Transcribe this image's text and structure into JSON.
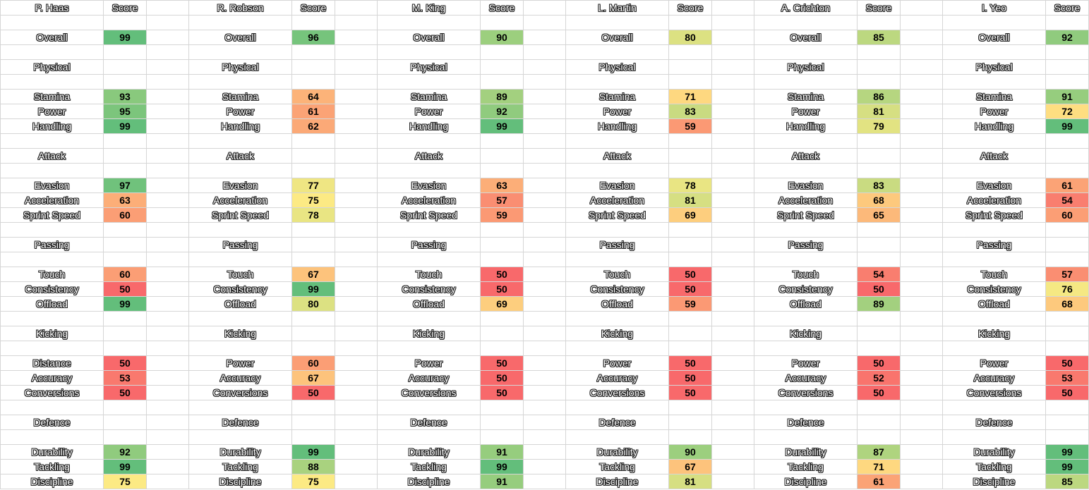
{
  "header_label": "Score",
  "overall_label": "Overall",
  "scale_colors": {
    "low": "#f8696b",
    "mid": "#ffeb84",
    "high": "#63be7b"
  },
  "players": [
    {
      "name": "P. Haas",
      "overall": 99,
      "sections": [
        {
          "title": "Physical",
          "stats": [
            {
              "label": "Stamina",
              "value": 93
            },
            {
              "label": "Power",
              "value": 95
            },
            {
              "label": "Handling",
              "value": 99
            }
          ]
        },
        {
          "title": "Attack",
          "stats": [
            {
              "label": "Evasion",
              "value": 97
            },
            {
              "label": "Acceleration",
              "value": 63
            },
            {
              "label": "Sprint Speed",
              "value": 60
            }
          ]
        },
        {
          "title": "Passing",
          "stats": [
            {
              "label": "Touch",
              "value": 60
            },
            {
              "label": "Consistency",
              "value": 50
            },
            {
              "label": "Offload",
              "value": 99
            }
          ]
        },
        {
          "title": "Kicking",
          "stats": [
            {
              "label": "Distance",
              "value": 50
            },
            {
              "label": "Accuracy",
              "value": 53
            },
            {
              "label": "Conversions",
              "value": 50
            }
          ]
        },
        {
          "title": "Defence",
          "stats": [
            {
              "label": "Durability",
              "value": 92
            },
            {
              "label": "Tackling",
              "value": 99
            },
            {
              "label": "Discipline",
              "value": 75
            }
          ]
        }
      ]
    },
    {
      "name": "R. Robson",
      "overall": 96,
      "sections": [
        {
          "title": "Physical",
          "stats": [
            {
              "label": "Stamina",
              "value": 64
            },
            {
              "label": "Power",
              "value": 61
            },
            {
              "label": "Handling",
              "value": 62
            }
          ]
        },
        {
          "title": "Attack",
          "stats": [
            {
              "label": "Evasion",
              "value": 77
            },
            {
              "label": "Acceleration",
              "value": 75
            },
            {
              "label": "Sprint Speed",
              "value": 78
            }
          ]
        },
        {
          "title": "Passing",
          "stats": [
            {
              "label": "Touch",
              "value": 67
            },
            {
              "label": "Consistency",
              "value": 99
            },
            {
              "label": "Offload",
              "value": 80
            }
          ]
        },
        {
          "title": "Kicking",
          "stats": [
            {
              "label": "Power",
              "value": 60
            },
            {
              "label": "Accuracy",
              "value": 67
            },
            {
              "label": "Conversions",
              "value": 50
            }
          ]
        },
        {
          "title": "Defence",
          "stats": [
            {
              "label": "Durability",
              "value": 99
            },
            {
              "label": "Tackling",
              "value": 88
            },
            {
              "label": "Discipline",
              "value": 75
            }
          ]
        }
      ]
    },
    {
      "name": "M. King",
      "overall": 90,
      "sections": [
        {
          "title": "Physical",
          "stats": [
            {
              "label": "Stamina",
              "value": 89
            },
            {
              "label": "Power",
              "value": 92
            },
            {
              "label": "Handling",
              "value": 99
            }
          ]
        },
        {
          "title": "Attack",
          "stats": [
            {
              "label": "Evasion",
              "value": 63
            },
            {
              "label": "Acceleration",
              "value": 57
            },
            {
              "label": "Sprint Speed",
              "value": 59
            }
          ]
        },
        {
          "title": "Passing",
          "stats": [
            {
              "label": "Touch",
              "value": 50
            },
            {
              "label": "Consistency",
              "value": 50
            },
            {
              "label": "Offload",
              "value": 69
            }
          ]
        },
        {
          "title": "Kicking",
          "stats": [
            {
              "label": "Power",
              "value": 50
            },
            {
              "label": "Accuracy",
              "value": 50
            },
            {
              "label": "Conversions",
              "value": 50
            }
          ]
        },
        {
          "title": "Defence",
          "stats": [
            {
              "label": "Durability",
              "value": 91
            },
            {
              "label": "Tackling",
              "value": 99
            },
            {
              "label": "Discipline",
              "value": 91
            }
          ]
        }
      ]
    },
    {
      "name": "L. Martin",
      "overall": 80,
      "sections": [
        {
          "title": "Physical",
          "stats": [
            {
              "label": "Stamina",
              "value": 71
            },
            {
              "label": "Power",
              "value": 83
            },
            {
              "label": "Handling",
              "value": 59
            }
          ]
        },
        {
          "title": "Attack",
          "stats": [
            {
              "label": "Evasion",
              "value": 78
            },
            {
              "label": "Acceleration",
              "value": 81
            },
            {
              "label": "Sprint Speed",
              "value": 69
            }
          ]
        },
        {
          "title": "Passing",
          "stats": [
            {
              "label": "Touch",
              "value": 50
            },
            {
              "label": "Consistency",
              "value": 50
            },
            {
              "label": "Offload",
              "value": 59
            }
          ]
        },
        {
          "title": "Kicking",
          "stats": [
            {
              "label": "Power",
              "value": 50
            },
            {
              "label": "Accuracy",
              "value": 50
            },
            {
              "label": "Conversions",
              "value": 50
            }
          ]
        },
        {
          "title": "Defence",
          "stats": [
            {
              "label": "Durability",
              "value": 90
            },
            {
              "label": "Tackling",
              "value": 67
            },
            {
              "label": "Discipline",
              "value": 81
            }
          ]
        }
      ]
    },
    {
      "name": "A. Crichton",
      "overall": 85,
      "sections": [
        {
          "title": "Physical",
          "stats": [
            {
              "label": "Stamina",
              "value": 86
            },
            {
              "label": "Power",
              "value": 81
            },
            {
              "label": "Handling",
              "value": 79
            }
          ]
        },
        {
          "title": "Attack",
          "stats": [
            {
              "label": "Evasion",
              "value": 83
            },
            {
              "label": "Acceleration",
              "value": 68
            },
            {
              "label": "Sprint Speed",
              "value": 65
            }
          ]
        },
        {
          "title": "Passing",
          "stats": [
            {
              "label": "Touch",
              "value": 54
            },
            {
              "label": "Consistency",
              "value": 50
            },
            {
              "label": "Offload",
              "value": 89
            }
          ]
        },
        {
          "title": "Kicking",
          "stats": [
            {
              "label": "Power",
              "value": 50
            },
            {
              "label": "Accuracy",
              "value": 52
            },
            {
              "label": "Conversions",
              "value": 50
            }
          ]
        },
        {
          "title": "Defence",
          "stats": [
            {
              "label": "Durability",
              "value": 87
            },
            {
              "label": "Tackling",
              "value": 71
            },
            {
              "label": "Discipline",
              "value": 61
            }
          ]
        }
      ]
    },
    {
      "name": "I. Yeo",
      "overall": 92,
      "sections": [
        {
          "title": "Physical",
          "stats": [
            {
              "label": "Stamina",
              "value": 91
            },
            {
              "label": "Power",
              "value": 72
            },
            {
              "label": "Handling",
              "value": 99
            }
          ]
        },
        {
          "title": "Attack",
          "stats": [
            {
              "label": "Evasion",
              "value": 61
            },
            {
              "label": "Acceleration",
              "value": 54
            },
            {
              "label": "Sprint Speed",
              "value": 60
            }
          ]
        },
        {
          "title": "Passing",
          "stats": [
            {
              "label": "Touch",
              "value": 57
            },
            {
              "label": "Consistency",
              "value": 76
            },
            {
              "label": "Offload",
              "value": 68
            }
          ]
        },
        {
          "title": "Kicking",
          "stats": [
            {
              "label": "Power",
              "value": 50
            },
            {
              "label": "Accuracy",
              "value": 53
            },
            {
              "label": "Conversions",
              "value": 50
            }
          ]
        },
        {
          "title": "Defence",
          "stats": [
            {
              "label": "Durability",
              "value": 99
            },
            {
              "label": "Tackling",
              "value": 99
            },
            {
              "label": "Discipline",
              "value": 85
            }
          ]
        }
      ]
    }
  ]
}
